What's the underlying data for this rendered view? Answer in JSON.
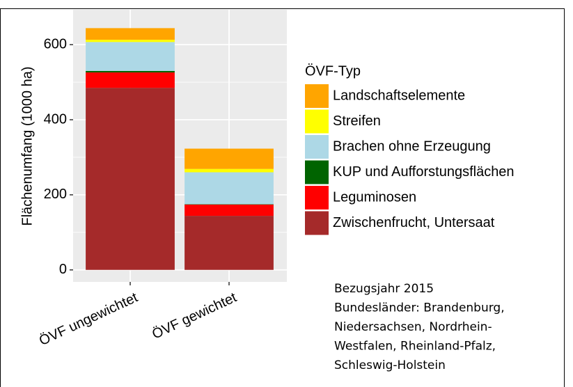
{
  "chart_data": {
    "type": "stacked_bar",
    "y_label": "Flächenumfang (1000 ha)",
    "categories": [
      "ÖVF ungewichtet",
      "ÖVF gewichtet"
    ],
    "legend_title": "ÖVF-Typ",
    "series": [
      {
        "name": "Landschaftselemente",
        "color": "#ffa500",
        "values": [
          31,
          54
        ]
      },
      {
        "name": "Streifen",
        "color": "#ffff00",
        "values": [
          6,
          9
        ]
      },
      {
        "name": "Brachen ohne Erzeugung",
        "color": "#add8e6",
        "values": [
          77,
          85
        ]
      },
      {
        "name": "KUP und Aufforstungsflächen",
        "color": "#006400",
        "values": [
          4,
          1
        ]
      },
      {
        "name": "Leguminosen",
        "color": "#ff0000",
        "values": [
          41,
          30
        ]
      },
      {
        "name": "Zwischenfrucht, Untersaat",
        "color": "#a52a2a",
        "values": [
          485,
          144
        ]
      }
    ],
    "ylim": [
      -32,
      693
    ],
    "yticks": [
      0,
      200,
      400,
      600
    ],
    "minor_yticks": [
      100,
      300,
      500
    ],
    "grid": true,
    "note": [
      "Bezugsjahr 2015",
      "Bundesländer: Brandenburg,",
      "Niedersachsen, Nordrhein-",
      "Westfalen, Rheinland-Pfalz,",
      "Schleswig-Holstein"
    ]
  }
}
